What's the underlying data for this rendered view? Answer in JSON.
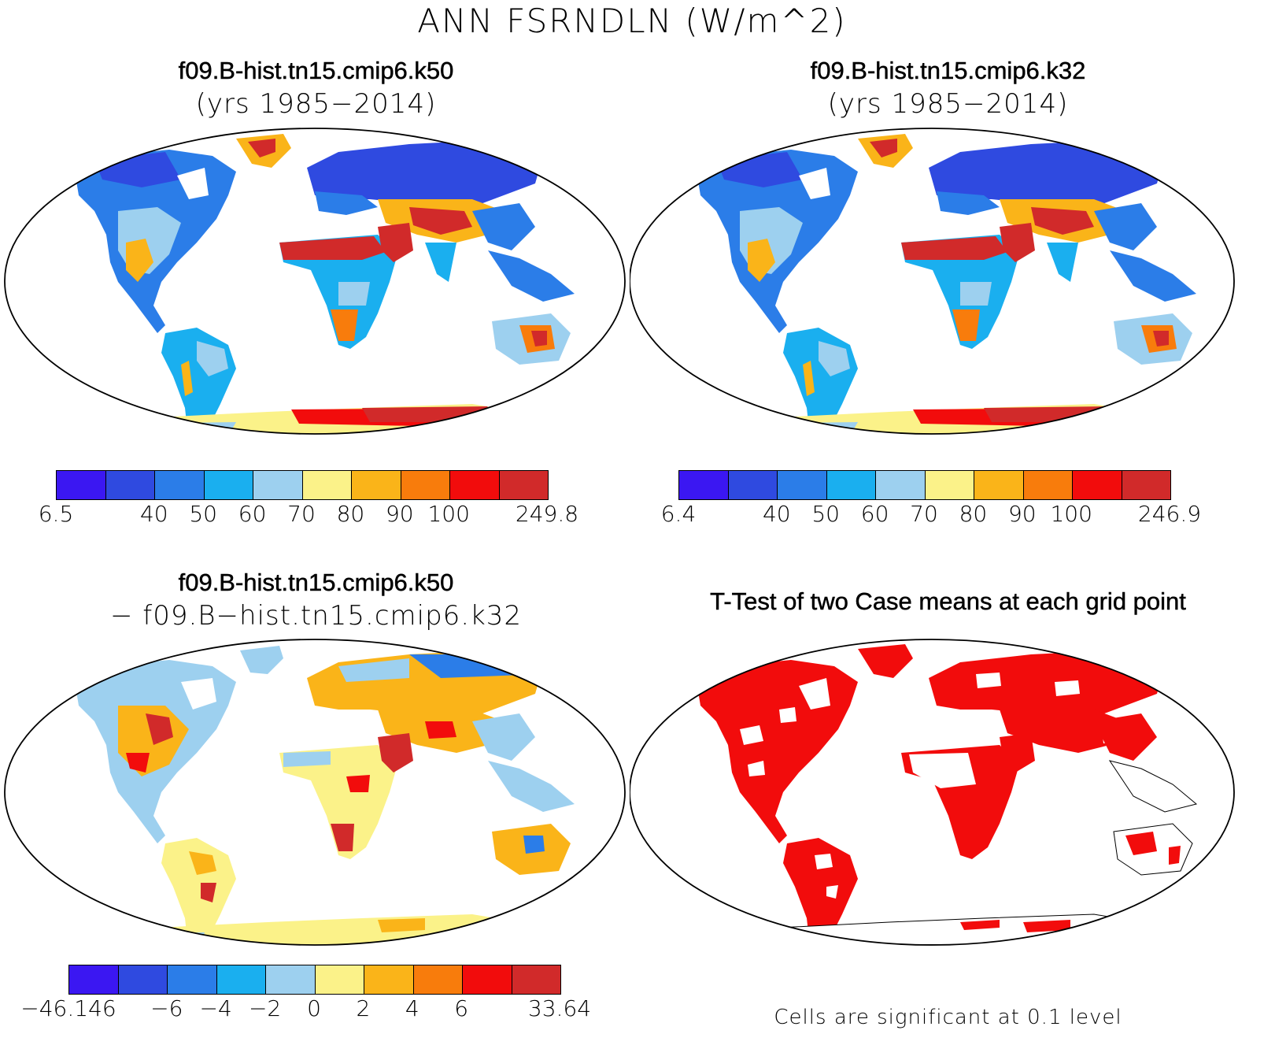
{
  "title": "ANN FSRNDLN (W/m^2)",
  "panels": {
    "top_left": {
      "case": "f09.B-hist.tn15.cmip6.k50",
      "years": "(yrs 1985−2014)"
    },
    "top_right": {
      "case": "f09.B-hist.tn15.cmip6.k32",
      "years": "(yrs 1985−2014)"
    },
    "bottom_left": {
      "case": "f09.B-hist.tn15.cmip6.k50",
      "minus_case": "− f09.B−hist.tn15.cmip6.k32"
    },
    "bottom_right": {
      "title": "T-Test of two Case means at each grid point",
      "footnote": "Cells are significant at 0.1 level"
    }
  },
  "colorbars": {
    "top_left": {
      "colors": [
        "#3b17f2",
        "#2f4ae0",
        "#2b7de8",
        "#1aafef",
        "#9dd0ef",
        "#fbf289",
        "#fab419",
        "#f87c0c",
        "#f20c0c",
        "#d12a2a"
      ],
      "labels": [
        "6.5",
        "",
        "40",
        "50",
        "60",
        "70",
        "80",
        "90",
        "100",
        "",
        "249.8"
      ]
    },
    "top_right": {
      "colors": [
        "#3b17f2",
        "#2f4ae0",
        "#2b7de8",
        "#1aafef",
        "#9dd0ef",
        "#fbf289",
        "#fab419",
        "#f87c0c",
        "#f20c0c",
        "#d12a2a"
      ],
      "labels": [
        "6.4",
        "",
        "40",
        "50",
        "60",
        "70",
        "80",
        "90",
        "100",
        "",
        "246.9"
      ]
    },
    "bottom_left": {
      "colors": [
        "#3b17f2",
        "#2f4ae0",
        "#2b7de8",
        "#1aafef",
        "#9dd0ef",
        "#fbf289",
        "#fab419",
        "#f87c0c",
        "#f20c0c",
        "#d12a2a"
      ],
      "labels": [
        "−46.146",
        "",
        "−6",
        "−4",
        "−2",
        "0",
        "2",
        "4",
        "6",
        "",
        "33.64"
      ]
    }
  }
}
